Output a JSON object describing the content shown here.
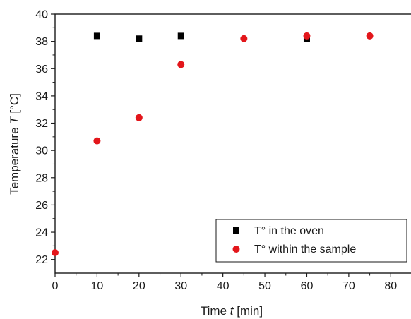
{
  "chart_data": {
    "type": "scatter",
    "xlabel_parts": [
      "Time ",
      "t",
      " [min]"
    ],
    "ylabel_parts": [
      "Temperature ",
      "T",
      " [°C]"
    ],
    "xlim": [
      0,
      85
    ],
    "ylim": [
      21,
      40
    ],
    "x_ticks": [
      0,
      10,
      20,
      30,
      40,
      50,
      60,
      70,
      80
    ],
    "y_ticks": [
      22,
      24,
      26,
      28,
      30,
      32,
      34,
      36,
      38,
      40
    ],
    "grid": false,
    "legend_position": "bottom-right",
    "series": [
      {
        "name": "T° in the oven",
        "marker": "square",
        "color": "#000000",
        "points": [
          [
            10,
            38.4
          ],
          [
            20,
            38.2
          ],
          [
            30,
            38.4
          ],
          [
            60,
            38.2
          ]
        ]
      },
      {
        "name": "T° within the sample",
        "marker": "circle",
        "color": "#e3161b",
        "points": [
          [
            0,
            22.5
          ],
          [
            10,
            30.7
          ],
          [
            20,
            32.4
          ],
          [
            30,
            36.3
          ],
          [
            45,
            38.2
          ],
          [
            60,
            38.4
          ],
          [
            75,
            38.4
          ]
        ]
      }
    ]
  }
}
